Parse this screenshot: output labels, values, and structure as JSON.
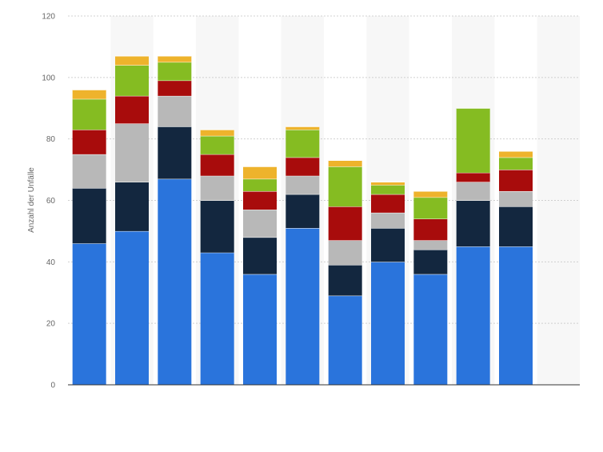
{
  "chart_data": {
    "type": "bar",
    "stacked": true,
    "title": "",
    "xlabel": "",
    "ylabel": "Anzahl der Unfälle",
    "ylim": [
      0,
      120
    ],
    "yticks": [
      0,
      20,
      40,
      60,
      80,
      100,
      120
    ],
    "grid": true,
    "legend": "none",
    "category_count": 12,
    "series": [
      {
        "color": "#2a74dc",
        "values": [
          46,
          50,
          67,
          43,
          36,
          51,
          29,
          40,
          36,
          45,
          45,
          0
        ]
      },
      {
        "color": "#13273f",
        "values": [
          18,
          16,
          17,
          17,
          12,
          11,
          10,
          11,
          8,
          15,
          13,
          0
        ]
      },
      {
        "color": "#b8b8b8",
        "values": [
          11,
          19,
          10,
          8,
          9,
          6,
          8,
          5,
          3,
          6,
          5,
          0
        ]
      },
      {
        "color": "#a80c0c",
        "values": [
          8,
          9,
          5,
          7,
          6,
          6,
          11,
          6,
          7,
          3,
          7,
          0
        ]
      },
      {
        "color": "#85bc22",
        "values": [
          10,
          10,
          6,
          6,
          4,
          9,
          13,
          3,
          7,
          21,
          4,
          0
        ]
      },
      {
        "color": "#eeb32c",
        "values": [
          3,
          3,
          2,
          2,
          4,
          1,
          2,
          1,
          2,
          0,
          2,
          0
        ]
      }
    ]
  }
}
